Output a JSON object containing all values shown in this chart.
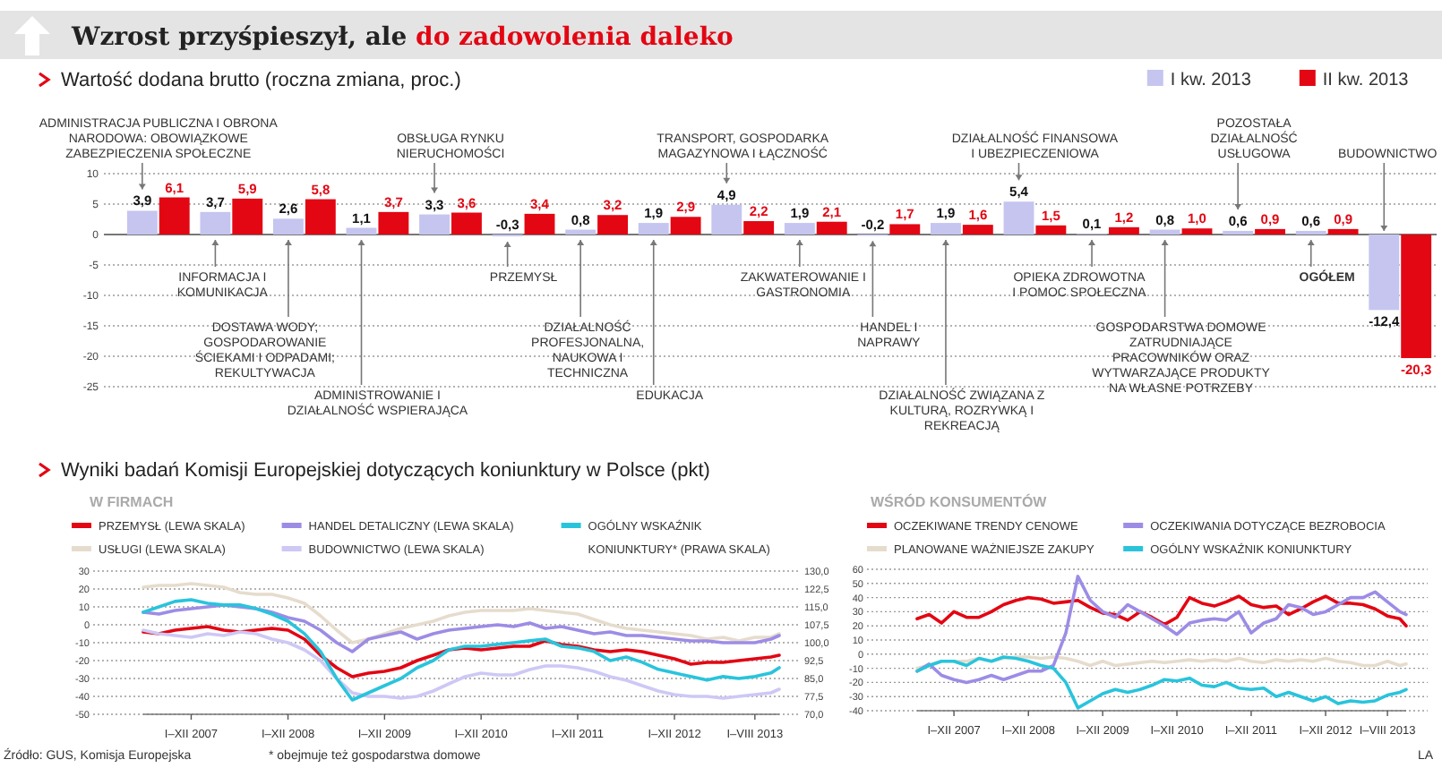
{
  "chart_data": [
    {
      "type": "bar",
      "title": "Wzrost przyśpieszył, ale do zadowolenia daleko",
      "subtitle": "Wartość dodana brutto (roczna zmiana, proc.)",
      "categories": [
        "ADMINISTRACJA PUBLICZNA I OBRONA NARODOWA: OBOWIĄZKOWE ZABEZPIECZENIA SPOŁECZNE",
        "INFORMACJA I KOMUNIKACJA",
        "DOSTAWA WODY; GOSPODAROWANIE ŚCIEKAMI I ODPADAMI; REKULTYWACJA",
        "ADMINISTROWANIE I DZIAŁALNOŚĆ WSPIERAJĄCA",
        "OBSŁUGA RYNKU NIERUCHOMOŚCI",
        "PRZEMYSŁ",
        "DZIAŁALNOŚĆ PROFESJONALNA, NAUKOWA I TECHNICZNA",
        "EDUKACJA",
        "TRANSPORT, GOSPODARKA MAGAZYNOWA I ŁĄCZNOŚĆ",
        "ZAKWATEROWANIE I GASTRONOMIA",
        "HANDEL I NAPRAWY",
        "DZIAŁALNOŚĆ ZWIĄZANA Z KULTURĄ, ROZRYWKĄ I REKREACJĄ",
        "DZIAŁALNOŚĆ FINANSOWA I UBEZPIECZENIOWA",
        "OPIEKA ZDROWOTNA I POMOC SPOŁECZNA",
        "GOSPODARSTWA DOMOWE ZATRUDNIAJĄCE PRACOWNIKÓW ORAZ WYTWARZAJĄCE PRODUKTY NA WŁASNE POTRZEBY",
        "POZOSTAŁA DZIAŁALNOŚĆ USŁUGOWA",
        "OGÓŁEM",
        "BUDOWNICTWO"
      ],
      "series": [
        {
          "name": "I kw. 2013",
          "color": "#c5c5f0",
          "values": [
            3.9,
            3.7,
            2.6,
            1.1,
            3.3,
            -0.3,
            0.8,
            1.9,
            4.9,
            1.9,
            -0.2,
            1.9,
            5.4,
            0.1,
            0.8,
            0.6,
            0.6,
            -12.4
          ],
          "value_labels": [
            "3,9",
            "3,7",
            "2,6",
            "1,1",
            "3,3",
            "-0,3",
            "0,8",
            "1,9",
            "4,9",
            "1,9",
            "-0,2",
            "1,9",
            "5,4",
            "0,1",
            "0,8",
            "0,6",
            "0,6",
            "-12,4"
          ]
        },
        {
          "name": "II kw. 2013",
          "color": "#e30613",
          "values": [
            6.1,
            5.9,
            5.8,
            3.7,
            3.6,
            3.4,
            3.2,
            2.9,
            2.2,
            2.1,
            1.7,
            1.6,
            1.5,
            1.2,
            1.0,
            0.9,
            0.9,
            -20.3
          ],
          "value_labels": [
            "6,1",
            "5,9",
            "5,8",
            "3,7",
            "3,6",
            "3,4",
            "3,2",
            "2,9",
            "2,2",
            "2,1",
            "1,7",
            "1,6",
            "1,5",
            "1,2",
            "1,0",
            "0,9",
            "0,9",
            "-20,3"
          ]
        }
      ],
      "ylim": [
        -25,
        10
      ],
      "yticks": [
        10,
        5,
        0,
        -5,
        -10,
        -15,
        -20,
        -25
      ],
      "grid": "y",
      "legend": "top right"
    },
    {
      "type": "line",
      "title": "Wyniki badań Komisji Europejskiej dotyczących koniunktury w Polsce (pkt)",
      "subtitle": "W FIRMACH",
      "x": [
        "2007-01",
        "2007-03",
        "2007-05",
        "2007-07",
        "2007-09",
        "2007-11",
        "2008-01",
        "2008-03",
        "2008-05",
        "2008-07",
        "2008-09",
        "2008-11",
        "2009-01",
        "2009-03",
        "2009-05",
        "2009-07",
        "2009-09",
        "2009-11",
        "2010-01",
        "2010-03",
        "2010-05",
        "2010-07",
        "2010-09",
        "2010-11",
        "2011-01",
        "2011-03",
        "2011-05",
        "2011-07",
        "2011-09",
        "2011-11",
        "2012-01",
        "2012-03",
        "2012-05",
        "2012-07",
        "2012-09",
        "2012-11",
        "2013-01",
        "2013-03",
        "2013-05",
        "2013-07",
        "2013-08"
      ],
      "xlim": [
        "2007-01",
        "2013-08"
      ],
      "xticks": [
        {
          "value": "2007-07",
          "label": "I–XII 2007"
        },
        {
          "value": "2008-07",
          "label": "I–XII 2008"
        },
        {
          "value": "2009-07",
          "label": "I–XII 2009"
        },
        {
          "value": "2010-07",
          "label": "I–XII 2010"
        },
        {
          "value": "2011-07",
          "label": "I–XII 2011"
        },
        {
          "value": "2012-07",
          "label": "I–XII 2012"
        },
        {
          "value": "2013-05",
          "label": "I–VIII 2013"
        }
      ],
      "ylim": [
        -50,
        30
      ],
      "yticks": [
        30,
        20,
        10,
        0,
        -10,
        -20,
        -30,
        -40,
        -50
      ],
      "y2lim": [
        70,
        130
      ],
      "y2ticks": [
        {
          "value": 130,
          "label": "130,0"
        },
        {
          "value": 122.5,
          "label": "122,5"
        },
        {
          "value": 115,
          "label": "115,0"
        },
        {
          "value": 107.5,
          "label": "107,5"
        },
        {
          "value": 100,
          "label": "100,0"
        },
        {
          "value": 92.5,
          "label": "92,5"
        },
        {
          "value": 85,
          "label": "85,0"
        },
        {
          "value": 77.5,
          "label": "77,5"
        },
        {
          "value": 70,
          "label": "70,0"
        }
      ],
      "series": [
        {
          "name": "PRZEMYSŁ (LEWA SKALA)",
          "color": "#e30613",
          "values": [
            -4,
            -5,
            -3,
            -2,
            -1,
            -3,
            -4,
            -3,
            -2,
            -3,
            -8,
            -17,
            -24,
            -29,
            -27,
            -26,
            -24,
            -20,
            -17,
            -14,
            -13,
            -14,
            -13,
            -12,
            -12,
            -9,
            -11,
            -12,
            -14,
            -15,
            -14,
            -15,
            -17,
            -19,
            -22,
            -21,
            -21,
            -20,
            -19,
            -18,
            -17
          ]
        },
        {
          "name": "USŁUGI (LEWA SKALA)",
          "color": "#e6dccd",
          "values": [
            21,
            22,
            22,
            23,
            22,
            21,
            18,
            17,
            17,
            15,
            12,
            5,
            -3,
            -10,
            -8,
            -5,
            -2,
            0,
            2,
            5,
            7,
            8,
            8,
            8,
            9,
            8,
            7,
            6,
            3,
            0,
            -2,
            -3,
            -4,
            -5,
            -6,
            -8,
            -7,
            -9,
            -7,
            -7,
            -5
          ]
        },
        {
          "name": "HANDEL DETALICZNY (LEWA SKALA)",
          "color": "#9d8ce6",
          "values": [
            7,
            6,
            8,
            9,
            10,
            11,
            10,
            9,
            7,
            4,
            2,
            -3,
            -10,
            -15,
            -8,
            -6,
            -4,
            -8,
            -5,
            -3,
            -2,
            -1,
            0,
            -1,
            1,
            -2,
            -1,
            -3,
            -5,
            -4,
            -6,
            -6,
            -7,
            -8,
            -9,
            -9,
            -10,
            -10,
            -10,
            -8,
            -6
          ]
        },
        {
          "name": "BUDOWNICTWO (LEWA SKALA)",
          "color": "#cdc8f5",
          "values": [
            -3,
            -5,
            -6,
            -7,
            -5,
            -6,
            -4,
            -5,
            -8,
            -10,
            -14,
            -20,
            -30,
            -38,
            -40,
            -40,
            -41,
            -40,
            -37,
            -33,
            -29,
            -27,
            -28,
            -28,
            -25,
            -23,
            -23,
            -24,
            -26,
            -29,
            -31,
            -34,
            -37,
            -39,
            -40,
            -40,
            -41,
            -40,
            -39,
            -38,
            -36
          ]
        },
        {
          "name": "OGÓLNY WSKAŹNIK KONIUNKTURY* (PRAWA SKALA)",
          "color": "#29c4dc",
          "axis": "y2",
          "values": [
            112.8,
            115,
            117.3,
            118,
            116.5,
            115.8,
            115.8,
            114.3,
            112,
            109,
            103.8,
            96.3,
            85,
            76,
            79,
            82,
            85,
            89.5,
            92.5,
            97,
            98.5,
            98.5,
            99.3,
            100,
            100.8,
            101.5,
            98.5,
            97.8,
            96.3,
            92.5,
            94,
            91.8,
            88.8,
            87.3,
            85.8,
            84.3,
            85.8,
            85,
            85.8,
            87.3,
            89.5
          ]
        }
      ],
      "grid": "y",
      "legend": "top",
      "annotations": [
        "Źródło: GUS, Komisja Europejska",
        "* obejmuje też gospodarstwa domowe"
      ]
    },
    {
      "type": "line",
      "subtitle": "WŚRÓD KONSUMENTÓW",
      "x": [
        "2007-01",
        "2007-03",
        "2007-05",
        "2007-07",
        "2007-09",
        "2007-11",
        "2008-01",
        "2008-03",
        "2008-05",
        "2008-07",
        "2008-09",
        "2008-11",
        "2009-01",
        "2009-03",
        "2009-05",
        "2009-07",
        "2009-09",
        "2009-11",
        "2010-01",
        "2010-03",
        "2010-05",
        "2010-07",
        "2010-09",
        "2010-11",
        "2011-01",
        "2011-03",
        "2011-05",
        "2011-07",
        "2011-09",
        "2011-11",
        "2012-01",
        "2012-03",
        "2012-05",
        "2012-07",
        "2012-09",
        "2012-11",
        "2013-01",
        "2013-03",
        "2013-05",
        "2013-07",
        "2013-08"
      ],
      "xlim": [
        "2007-01",
        "2013-08"
      ],
      "xticks": [
        {
          "value": "2007-07",
          "label": "I–XII 2007"
        },
        {
          "value": "2008-07",
          "label": "I–XII 2008"
        },
        {
          "value": "2009-07",
          "label": "I–XII 2009"
        },
        {
          "value": "2010-07",
          "label": "I–XII 2010"
        },
        {
          "value": "2011-07",
          "label": "I–XII 2011"
        },
        {
          "value": "2012-07",
          "label": "I–XII 2012"
        },
        {
          "value": "2013-05",
          "label": "I–VIII 2013"
        }
      ],
      "ylim": [
        -40,
        60
      ],
      "yticks": [
        60,
        50,
        40,
        30,
        20,
        10,
        0,
        -10,
        -20,
        -30,
        -40
      ],
      "series": [
        {
          "name": "OCZEKIWANE TRENDY CENOWE",
          "color": "#e30613",
          "values": [
            25,
            28,
            22,
            30,
            26,
            26,
            30,
            35,
            38,
            40,
            39,
            36,
            37,
            38,
            33,
            29,
            28,
            24,
            30,
            26,
            21,
            26,
            40,
            36,
            34,
            37,
            41,
            35,
            33,
            34,
            28,
            32,
            37,
            41,
            36,
            36,
            35,
            32,
            27,
            25,
            20
          ]
        },
        {
          "name": "PLANOWANE WAŻNIEJSZE ZAKUPY",
          "color": "#e6dccd",
          "values": [
            -10,
            -8,
            -5,
            -5,
            -5,
            -3,
            -5,
            -3,
            -2,
            -2,
            -3,
            -2,
            -3,
            -5,
            -8,
            -5,
            -8,
            -7,
            -6,
            -5,
            -6,
            -5,
            -4,
            -5,
            -4,
            -5,
            -3,
            -5,
            -6,
            -4,
            -5,
            -4,
            -5,
            -3,
            -5,
            -6,
            -8,
            -8,
            -5,
            -8,
            -7
          ]
        },
        {
          "name": "OCZEKIWANIA DOTYCZĄCE BEZROBOCIA",
          "color": "#9d8ce6",
          "values": [
            -12,
            -7,
            -15,
            -18,
            -20,
            -18,
            -15,
            -18,
            -15,
            -12,
            -12,
            -8,
            15,
            55,
            38,
            30,
            26,
            35,
            30,
            25,
            20,
            14,
            22,
            24,
            25,
            24,
            30,
            15,
            22,
            25,
            35,
            33,
            28,
            30,
            35,
            40,
            40,
            44,
            37,
            30,
            28
          ]
        },
        {
          "name": "OGÓLNY WSKAŹNIK KONIUNKTURY",
          "color": "#29c4dc",
          "values": [
            -12,
            -8,
            -5,
            -5,
            -8,
            -3,
            -5,
            -2,
            -3,
            -5,
            -8,
            -10,
            -20,
            -38,
            -33,
            -28,
            -25,
            -27,
            -25,
            -22,
            -18,
            -19,
            -17,
            -22,
            -23,
            -20,
            -24,
            -25,
            -24,
            -30,
            -27,
            -30,
            -33,
            -30,
            -35,
            -33,
            -34,
            -33,
            -29,
            -27,
            -25
          ]
        }
      ],
      "grid": "y",
      "legend": "top",
      "annotations": [
        "LA"
      ]
    }
  ]
}
